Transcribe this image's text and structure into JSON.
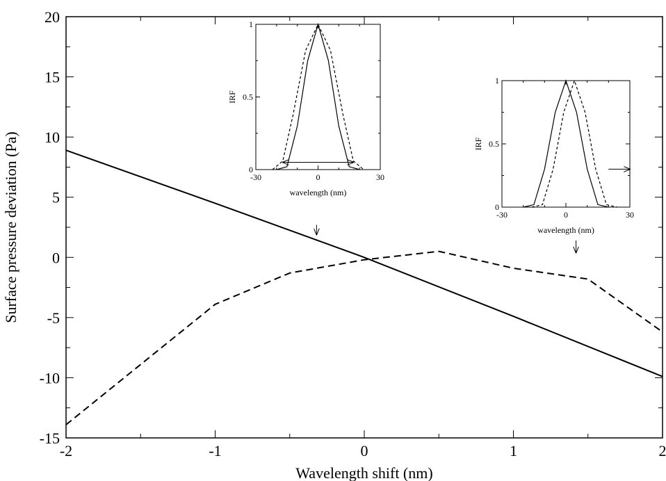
{
  "chart_data": [
    {
      "type": "line",
      "title": "",
      "xlabel": "Wavelength shift (nm)",
      "ylabel": "Surface pressure deviation (Pa)",
      "xlim": [
        -2,
        2
      ],
      "ylim": [
        -15,
        20
      ],
      "x_ticks": [
        -2,
        -1,
        0,
        1,
        2
      ],
      "y_ticks": [
        -15,
        -10,
        -5,
        0,
        5,
        10,
        15,
        20
      ],
      "x_tick_labels": [
        "-2",
        "-1",
        "0",
        "1",
        "2"
      ],
      "y_tick_labels": [
        "-15",
        "-10",
        "-5",
        "0",
        "5",
        "10",
        "15",
        "20"
      ],
      "grid": false,
      "legend": "none",
      "series": [
        {
          "style": "solid",
          "color": "#000000",
          "x": [
            -2,
            -1,
            0,
            1,
            2
          ],
          "y": [
            8.9,
            4.5,
            0,
            -4.9,
            -9.9
          ]
        },
        {
          "style": "dashed",
          "color": "#000000",
          "x": [
            -2,
            -1,
            -0.5,
            0,
            0.5,
            1,
            1.5,
            2
          ],
          "y": [
            -13.9,
            -3.9,
            -1.3,
            -0.2,
            0.5,
            -0.9,
            -1.8,
            -6.2
          ]
        }
      ],
      "annotations": [
        {
          "type": "arrow",
          "from": [
            -0.32,
            2.7
          ],
          "to": [
            -0.32,
            1.9
          ]
        },
        {
          "type": "arrow",
          "from": [
            1.42,
            1.4
          ],
          "to": [
            1.42,
            0.4
          ]
        }
      ]
    },
    {
      "type": "line",
      "title": "",
      "xlabel": "wavelength (nm)",
      "ylabel": "IRF",
      "xlim": [
        -30,
        30
      ],
      "ylim": [
        0,
        1
      ],
      "x_ticks": [
        -30,
        0,
        30
      ],
      "y_ticks": [
        0,
        0.5,
        1
      ],
      "x_tick_labels": [
        "-30",
        "0",
        "30"
      ],
      "y_tick_labels": [
        "0",
        "0.5",
        "1"
      ],
      "series": [
        {
          "style": "solid",
          "x": [
            -20,
            -15,
            -10,
            -5,
            0,
            5,
            10,
            15,
            20
          ],
          "y": [
            0,
            0.02,
            0.3,
            0.75,
            1,
            0.75,
            0.3,
            0.02,
            0
          ]
        },
        {
          "style": "dashed",
          "x": [
            -22,
            -17,
            -12,
            -6,
            0,
            6,
            12,
            17,
            22
          ],
          "y": [
            0,
            0.06,
            0.38,
            0.82,
            1,
            0.82,
            0.38,
            0.06,
            0
          ]
        }
      ],
      "annotations": [
        {
          "type": "double-arrow",
          "from": [
            -17,
            0.05
          ],
          "to": [
            17,
            0.05
          ]
        }
      ]
    },
    {
      "type": "line",
      "title": "",
      "xlabel": "wavelength (nm)",
      "ylabel": "IRF",
      "xlim": [
        -30,
        30
      ],
      "ylim": [
        0,
        1
      ],
      "x_ticks": [
        -30,
        0,
        30
      ],
      "y_ticks": [
        0,
        0.5,
        1
      ],
      "x_tick_labels": [
        "-30",
        "0",
        "30"
      ],
      "y_tick_labels": [
        "0",
        "0.5",
        "1"
      ],
      "series": [
        {
          "style": "solid",
          "x": [
            -20,
            -15,
            -10,
            -5,
            0,
            5,
            10,
            15,
            20
          ],
          "y": [
            0,
            0.02,
            0.3,
            0.75,
            1,
            0.75,
            0.3,
            0.02,
            0
          ]
        },
        {
          "style": "dashed",
          "x": [
            -16,
            -11,
            -6,
            -1,
            4,
            9,
            14,
            19,
            24
          ],
          "y": [
            0,
            0.02,
            0.3,
            0.75,
            1,
            0.75,
            0.3,
            0.02,
            0
          ]
        }
      ],
      "annotations": [
        {
          "type": "arrow",
          "from": [
            20,
            0.3
          ],
          "to": [
            30,
            0.3
          ]
        }
      ]
    }
  ]
}
